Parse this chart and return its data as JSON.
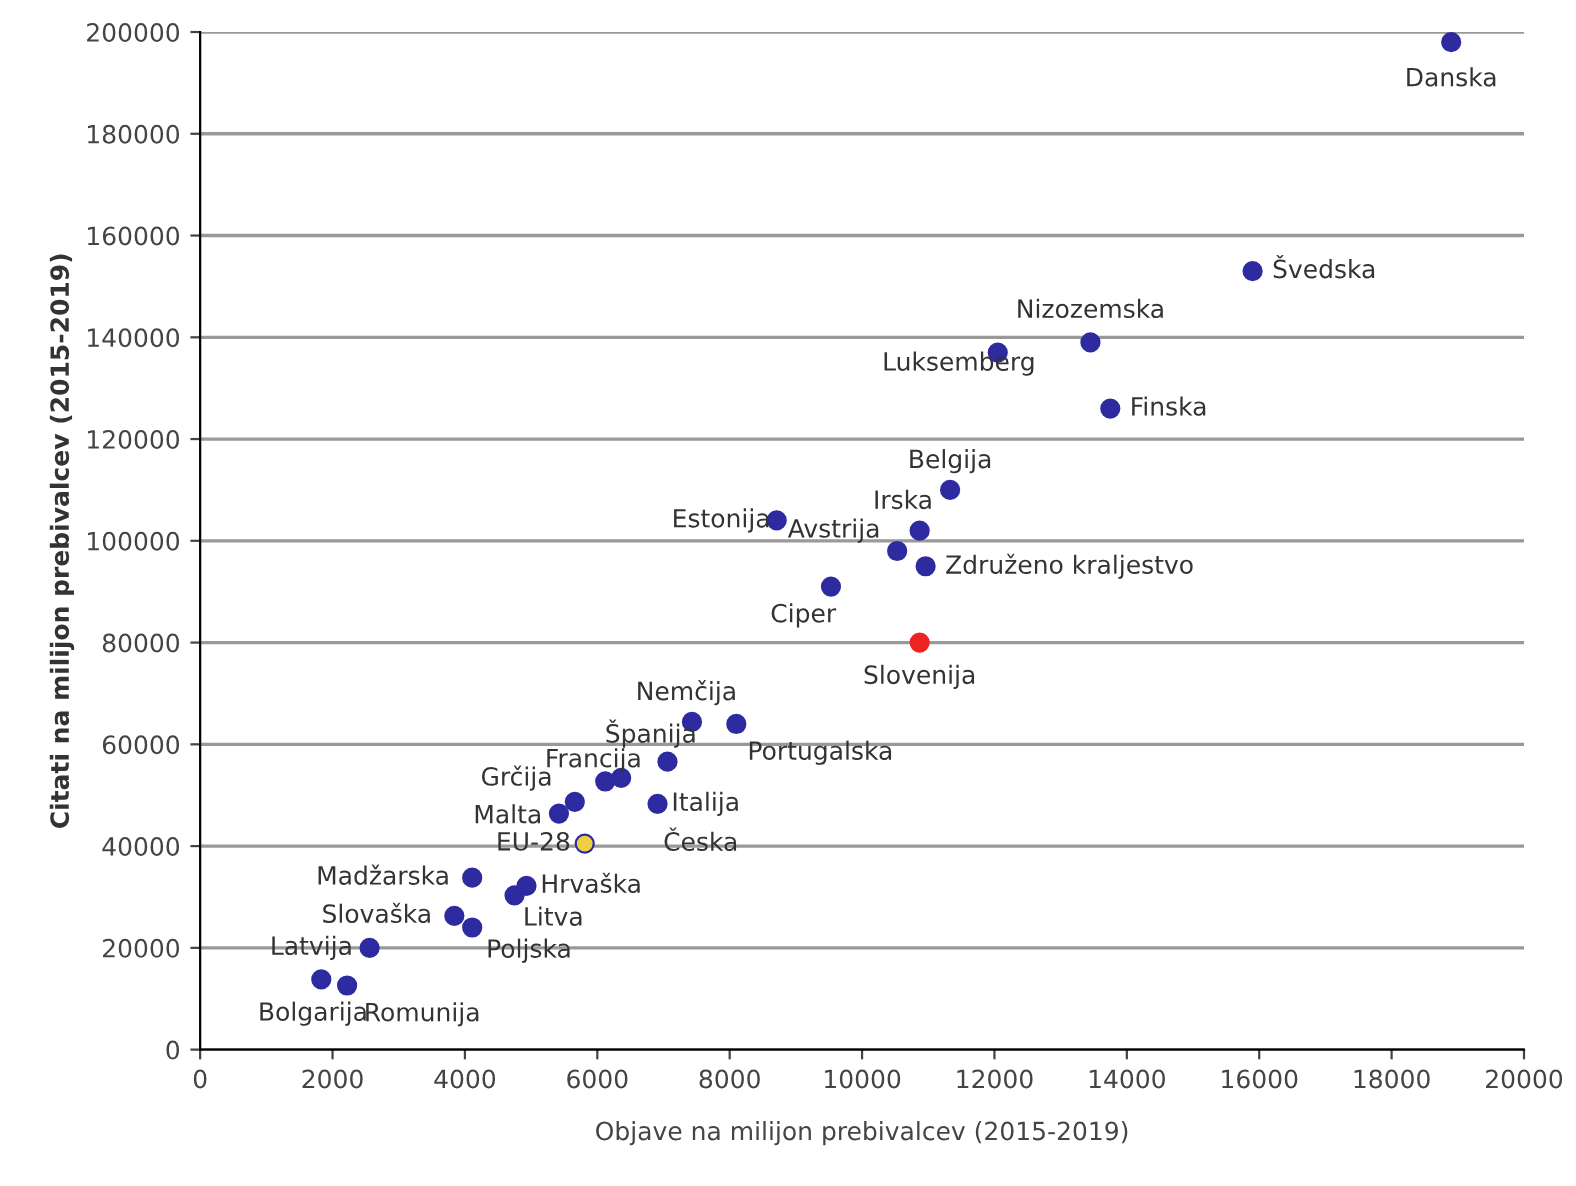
{
  "chart_data": {
    "type": "scatter",
    "xlabel": "Objave na milijon prebivalcev (2015-2019)",
    "ylabel": "Citati na milijon prebivalcev (2015-2019)",
    "x": [
      18900,
      15900,
      13450,
      12050,
      13750,
      11330,
      10870,
      8710,
      10530,
      10960,
      9530,
      10870,
      7430,
      8100,
      7060,
      6360,
      6120,
      5660,
      5420,
      6910,
      5810,
      4110,
      4930,
      4750,
      3840,
      4110,
      2560,
      1830,
      2220
    ],
    "values": [
      198000,
      153000,
      139000,
      137000,
      126000,
      110000,
      102000,
      104000,
      98000,
      95000,
      91000,
      80000,
      64400,
      64000,
      56600,
      53400,
      52700,
      48700,
      46400,
      48300,
      40500,
      33800,
      32200,
      30300,
      26300,
      24000,
      20000,
      13800,
      12600
    ],
    "colors": [
      "#2e2aa0",
      "#2e2aa0",
      "#2e2aa0",
      "#2e2aa0",
      "#2e2aa0",
      "#2e2aa0",
      "#2e2aa0",
      "#2e2aa0",
      "#2e2aa0",
      "#2e2aa0",
      "#2e2aa0",
      "#ee2222",
      "#2e2aa0",
      "#2e2aa0",
      "#2e2aa0",
      "#2e2aa0",
      "#2e2aa0",
      "#2e2aa0",
      "#2e2aa0",
      "#2e2aa0",
      "#f0d040",
      "#2e2aa0",
      "#2e2aa0",
      "#2e2aa0",
      "#2e2aa0",
      "#2e2aa0",
      "#2e2aa0",
      "#2e2aa0",
      "#2e2aa0"
    ],
    "marker": "circle",
    "grid": "y",
    "xlim": [
      0,
      20000
    ],
    "xticks": [
      0,
      2000,
      4000,
      6000,
      8000,
      10000,
      12000,
      14000,
      16000,
      18000,
      20000
    ],
    "ylim": [
      0,
      200000
    ],
    "yticks": [
      0,
      20000,
      40000,
      60000,
      80000,
      100000,
      120000,
      140000,
      160000,
      180000,
      200000
    ],
    "annotations": [
      {
        "text": "Danska",
        "x": 18900,
        "y": 198000
      },
      {
        "text": "Švedska",
        "x": 15900,
        "y": 153000
      },
      {
        "text": "Nizozemska",
        "x": 13450,
        "y": 139000
      },
      {
        "text": "Luksemberg",
        "x": 12050,
        "y": 137000
      },
      {
        "text": "Finska",
        "x": 13750,
        "y": 126000
      },
      {
        "text": "Belgija",
        "x": 11330,
        "y": 110000
      },
      {
        "text": "Irska",
        "x": 10870,
        "y": 102000
      },
      {
        "text": "Estonija",
        "x": 8710,
        "y": 104000
      },
      {
        "text": "Avstrija",
        "x": 10530,
        "y": 98000
      },
      {
        "text": "Združeno kraljestvo",
        "x": 10960,
        "y": 95000
      },
      {
        "text": "Ciper",
        "x": 9530,
        "y": 91000
      },
      {
        "text": "Slovenija",
        "x": 10870,
        "y": 80000
      },
      {
        "text": "Nemčija",
        "x": 7430,
        "y": 64400
      },
      {
        "text": "Portugalska",
        "x": 8100,
        "y": 64000
      },
      {
        "text": "Španija",
        "x": 7060,
        "y": 56600
      },
      {
        "text": "Francija",
        "x": 6360,
        "y": 53400
      },
      {
        "text": "Grčija",
        "x": 5660,
        "y": 48700
      },
      {
        "text": "Malta",
        "x": 5420,
        "y": 46400
      },
      {
        "text": "Italija",
        "x": 6910,
        "y": 48300
      },
      {
        "text": "EU-28",
        "x": 5810,
        "y": 40500
      },
      {
        "text": "Česka",
        "x": 6910,
        "y": 48300
      },
      {
        "text": "Madžarska",
        "x": 4110,
        "y": 33800
      },
      {
        "text": "Hrvaška",
        "x": 4930,
        "y": 32200
      },
      {
        "text": "Litva",
        "x": 4750,
        "y": 30300
      },
      {
        "text": "Slovaška",
        "x": 3840,
        "y": 26300
      },
      {
        "text": "Poljska",
        "x": 4110,
        "y": 24000
      },
      {
        "text": "Latvija",
        "x": 2560,
        "y": 20000
      },
      {
        "text": "Bolgarija",
        "x": 1830,
        "y": 13800
      },
      {
        "text": "Romunija",
        "x": 2220,
        "y": 12600
      }
    ]
  }
}
